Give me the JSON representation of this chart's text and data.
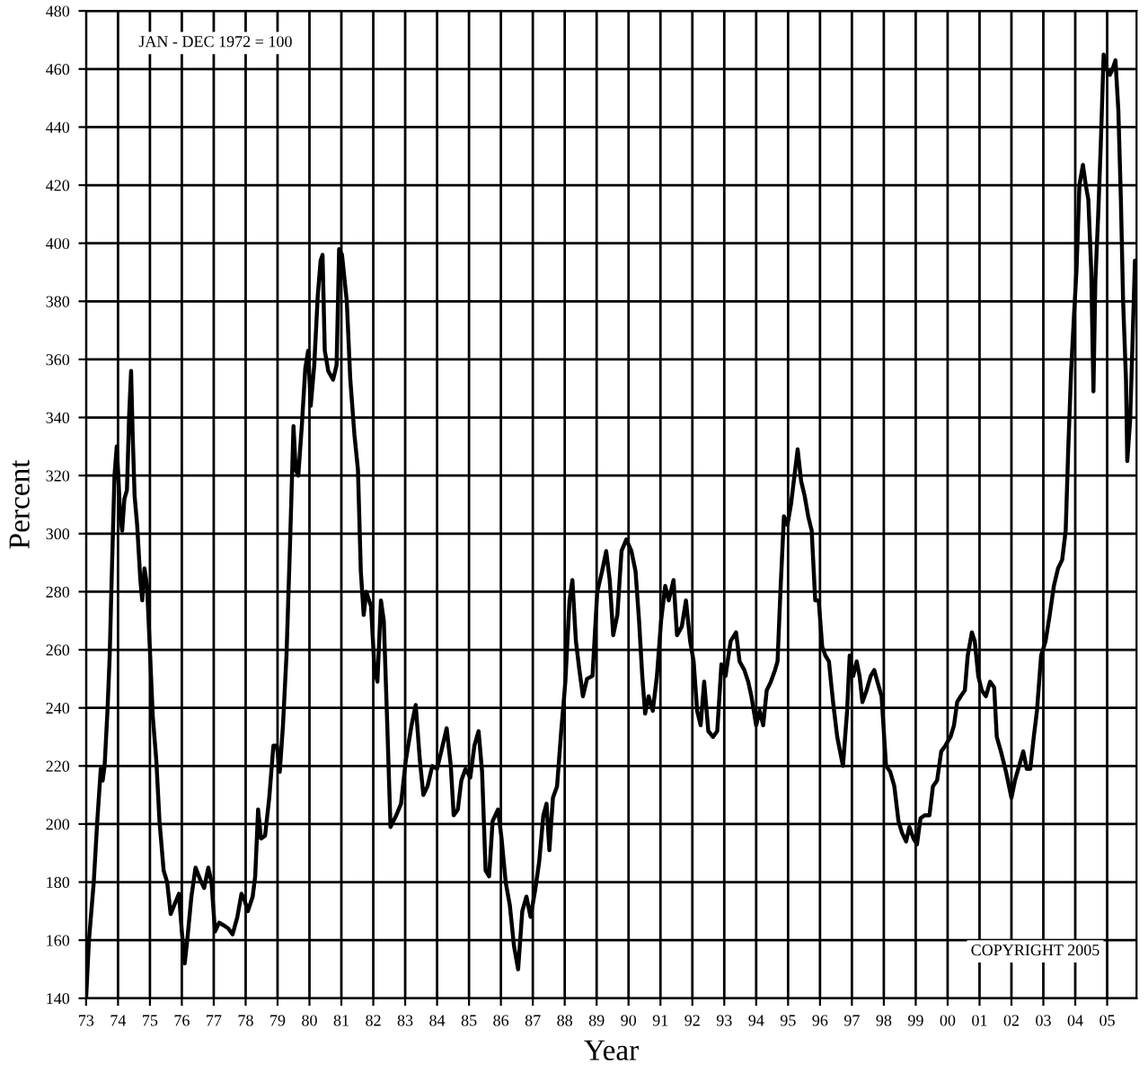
{
  "chart_data": {
    "type": "line",
    "xlabel": "Year",
    "ylabel": "Percent",
    "annotations": [
      "JAN - DEC 1972 = 100",
      "COPYRIGHT 2005"
    ],
    "xlim": [
      1973,
      2005.92
    ],
    "ylim": [
      140,
      480
    ],
    "xticks": [
      {
        "value": 1973,
        "label": "73"
      },
      {
        "value": 1974,
        "label": "74"
      },
      {
        "value": 1975,
        "label": "75"
      },
      {
        "value": 1976,
        "label": "76"
      },
      {
        "value": 1977,
        "label": "77"
      },
      {
        "value": 1978,
        "label": "78"
      },
      {
        "value": 1979,
        "label": "79"
      },
      {
        "value": 1980,
        "label": "80"
      },
      {
        "value": 1981,
        "label": "81"
      },
      {
        "value": 1982,
        "label": "82"
      },
      {
        "value": 1983,
        "label": "83"
      },
      {
        "value": 1984,
        "label": "84"
      },
      {
        "value": 1985,
        "label": "85"
      },
      {
        "value": 1986,
        "label": "86"
      },
      {
        "value": 1987,
        "label": "87"
      },
      {
        "value": 1988,
        "label": "88"
      },
      {
        "value": 1989,
        "label": "89"
      },
      {
        "value": 1990,
        "label": "90"
      },
      {
        "value": 1991,
        "label": "91"
      },
      {
        "value": 1992,
        "label": "92"
      },
      {
        "value": 1993,
        "label": "93"
      },
      {
        "value": 1994,
        "label": "94"
      },
      {
        "value": 1995,
        "label": "95"
      },
      {
        "value": 1996,
        "label": "96"
      },
      {
        "value": 1997,
        "label": "97"
      },
      {
        "value": 1998,
        "label": "98"
      },
      {
        "value": 1999,
        "label": "99"
      },
      {
        "value": 2000,
        "label": "00"
      },
      {
        "value": 2001,
        "label": "01"
      },
      {
        "value": 2002,
        "label": "02"
      },
      {
        "value": 2003,
        "label": "03"
      },
      {
        "value": 2004,
        "label": "04"
      },
      {
        "value": 2005,
        "label": "05"
      }
    ],
    "yticks": [
      140,
      160,
      180,
      200,
      220,
      240,
      260,
      280,
      300,
      320,
      340,
      360,
      380,
      400,
      420,
      440,
      460,
      480
    ],
    "grid": true,
    "marker": "none",
    "line_style": "solid",
    "series": [
      {
        "color": "#000000",
        "x": [
          1973.0,
          1973.09,
          1973.24,
          1973.35,
          1973.46,
          1973.52,
          1973.58,
          1973.67,
          1973.74,
          1973.8,
          1973.89,
          1973.96,
          1974.0,
          1974.07,
          1974.13,
          1974.2,
          1974.28,
          1974.35,
          1974.41,
          1974.46,
          1974.52,
          1974.6,
          1974.7,
          1974.76,
          1974.83,
          1974.91,
          1975.0,
          1975.09,
          1975.2,
          1975.3,
          1975.43,
          1975.54,
          1975.65,
          1975.76,
          1975.91,
          1976.0,
          1976.09,
          1976.17,
          1976.3,
          1976.43,
          1976.57,
          1976.7,
          1976.83,
          1976.93,
          1977.04,
          1977.17,
          1977.33,
          1977.46,
          1977.59,
          1977.74,
          1977.87,
          1977.96,
          1978.07,
          1978.22,
          1978.3,
          1978.39,
          1978.48,
          1978.61,
          1978.74,
          1978.87,
          1978.98,
          1979.07,
          1979.17,
          1979.28,
          1979.39,
          1979.5,
          1979.57,
          1979.65,
          1979.76,
          1979.87,
          1979.96,
          1980.04,
          1980.15,
          1980.26,
          1980.35,
          1980.41,
          1980.48,
          1980.59,
          1980.74,
          1980.85,
          1980.93,
          1981.02,
          1981.17,
          1981.28,
          1981.41,
          1981.52,
          1981.61,
          1981.7,
          1981.78,
          1981.93,
          1982.04,
          1982.13,
          1982.24,
          1982.33,
          1982.43,
          1982.54,
          1982.72,
          1982.87,
          1983.02,
          1983.2,
          1983.33,
          1983.46,
          1983.57,
          1983.7,
          1983.85,
          1984.0,
          1984.13,
          1984.3,
          1984.43,
          1984.52,
          1984.65,
          1984.76,
          1984.89,
          1985.04,
          1985.17,
          1985.3,
          1985.41,
          1985.52,
          1985.63,
          1985.74,
          1985.91,
          1986.02,
          1986.15,
          1986.28,
          1986.41,
          1986.54,
          1986.67,
          1986.8,
          1986.93,
          1987.07,
          1987.2,
          1987.33,
          1987.43,
          1987.52,
          1987.63,
          1987.76,
          1987.89,
          1988.02,
          1988.15,
          1988.24,
          1988.35,
          1988.46,
          1988.57,
          1988.7,
          1988.87,
          1989.02,
          1989.17,
          1989.3,
          1989.41,
          1989.52,
          1989.65,
          1989.78,
          1989.93,
          1990.09,
          1990.22,
          1990.33,
          1990.43,
          1990.52,
          1990.63,
          1990.76,
          1990.89,
          1991.02,
          1991.15,
          1991.26,
          1991.41,
          1991.52,
          1991.67,
          1991.8,
          1991.93,
          1992.04,
          1992.15,
          1992.26,
          1992.37,
          1992.5,
          1992.65,
          1992.78,
          1992.91,
          1993.04,
          1993.2,
          1993.37,
          1993.48,
          1993.63,
          1993.75,
          1993.85,
          1994.0,
          1994.11,
          1994.22,
          1994.33,
          1994.46,
          1994.59,
          1994.67,
          1994.76,
          1994.87,
          1994.98,
          1995.09,
          1995.2,
          1995.3,
          1995.41,
          1995.52,
          1995.63,
          1995.74,
          1995.85,
          1995.96,
          1996.07,
          1996.17,
          1996.28,
          1996.41,
          1996.54,
          1996.72,
          1996.85,
          1996.93,
          1997.04,
          1997.15,
          1997.24,
          1997.33,
          1997.46,
          1997.59,
          1997.7,
          1997.8,
          1997.93,
          1998.07,
          1998.2,
          1998.33,
          1998.46,
          1998.57,
          1998.7,
          1998.8,
          1998.93,
          1999.04,
          1999.15,
          1999.28,
          1999.43,
          1999.54,
          1999.67,
          1999.8,
          1999.93,
          2000.09,
          2000.2,
          2000.3,
          2000.41,
          2000.54,
          2000.63,
          2000.76,
          2000.85,
          2000.96,
          2001.07,
          2001.2,
          2001.33,
          2001.46,
          2001.54,
          2001.67,
          2001.83,
          2002.0,
          2002.11,
          2002.24,
          2002.37,
          2002.48,
          2002.59,
          2002.7,
          2002.8,
          2002.93,
          2003.07,
          2003.2,
          2003.33,
          2003.46,
          2003.59,
          2003.7,
          2003.78,
          2003.87,
          2003.96,
          2004.04,
          2004.13,
          2004.24,
          2004.33,
          2004.41,
          2004.5,
          2004.57,
          2004.63,
          2004.72,
          2004.8,
          2004.89,
          2004.98,
          2005.09,
          2005.17,
          2005.26,
          2005.35,
          2005.43,
          2005.5,
          2005.59,
          2005.63,
          2005.72,
          2005.8,
          2005.87,
          2005.9
        ],
        "values": [
          140,
          160,
          180,
          201,
          219,
          215,
          220,
          239,
          258,
          284,
          320,
          330,
          322,
          306,
          301,
          312,
          315,
          341,
          356,
          334,
          313,
          303,
          284,
          277,
          288,
          282,
          260,
          237,
          222,
          201,
          184,
          180,
          169,
          172,
          176,
          163,
          152,
          160,
          175,
          185,
          181,
          178,
          185,
          180,
          163,
          166,
          165,
          164,
          162,
          168,
          176,
          174,
          170,
          175,
          182,
          205,
          195,
          196,
          209,
          227,
          227,
          218,
          234,
          258,
          296,
          337,
          322,
          320,
          337,
          357,
          363,
          344,
          358,
          382,
          394,
          396,
          363,
          356,
          353,
          358,
          398,
          396,
          380,
          353,
          334,
          322,
          287,
          272,
          280,
          275,
          253,
          249,
          277,
          270,
          237,
          199,
          203,
          207,
          222,
          234,
          241,
          222,
          210,
          213,
          220,
          219,
          225,
          233,
          220,
          203,
          205,
          215,
          219,
          216,
          227,
          232,
          218,
          184,
          182,
          201,
          205,
          195,
          180,
          172,
          158,
          150,
          170,
          175,
          168,
          177,
          187,
          203,
          207,
          191,
          209,
          213,
          232,
          249,
          277,
          284,
          263,
          253,
          244,
          250,
          251,
          280,
          287,
          294,
          284,
          265,
          272,
          294,
          298,
          294,
          287,
          270,
          251,
          238,
          244,
          239,
          251,
          270,
          282,
          277,
          284,
          265,
          268,
          277,
          263,
          256,
          239,
          234,
          249,
          232,
          230,
          232,
          255,
          251,
          263,
          266,
          256,
          253,
          249,
          244,
          234,
          239,
          234,
          246,
          249,
          253,
          256,
          280,
          306,
          303,
          310,
          320,
          329,
          318,
          313,
          306,
          301,
          277,
          277,
          261,
          258,
          256,
          242,
          230,
          220,
          239,
          258,
          251,
          256,
          251,
          242,
          246,
          251,
          253,
          249,
          244,
          220,
          218,
          213,
          201,
          197,
          194,
          199,
          195,
          193,
          202,
          203,
          203,
          213,
          215,
          225,
          227,
          230,
          234,
          242,
          244,
          246,
          258,
          266,
          263,
          251,
          246,
          244,
          249,
          247,
          230,
          225,
          218,
          209,
          215,
          220,
          225,
          219,
          219,
          230,
          239,
          258,
          263,
          272,
          282,
          288,
          291,
          301,
          329,
          356,
          375,
          391,
          420,
          427,
          420,
          415,
          391,
          349,
          387,
          410,
          434,
          465,
          460,
          458,
          460,
          463,
          446,
          415,
          380,
          353,
          325,
          339,
          368,
          394,
          387
        ]
      }
    ]
  }
}
